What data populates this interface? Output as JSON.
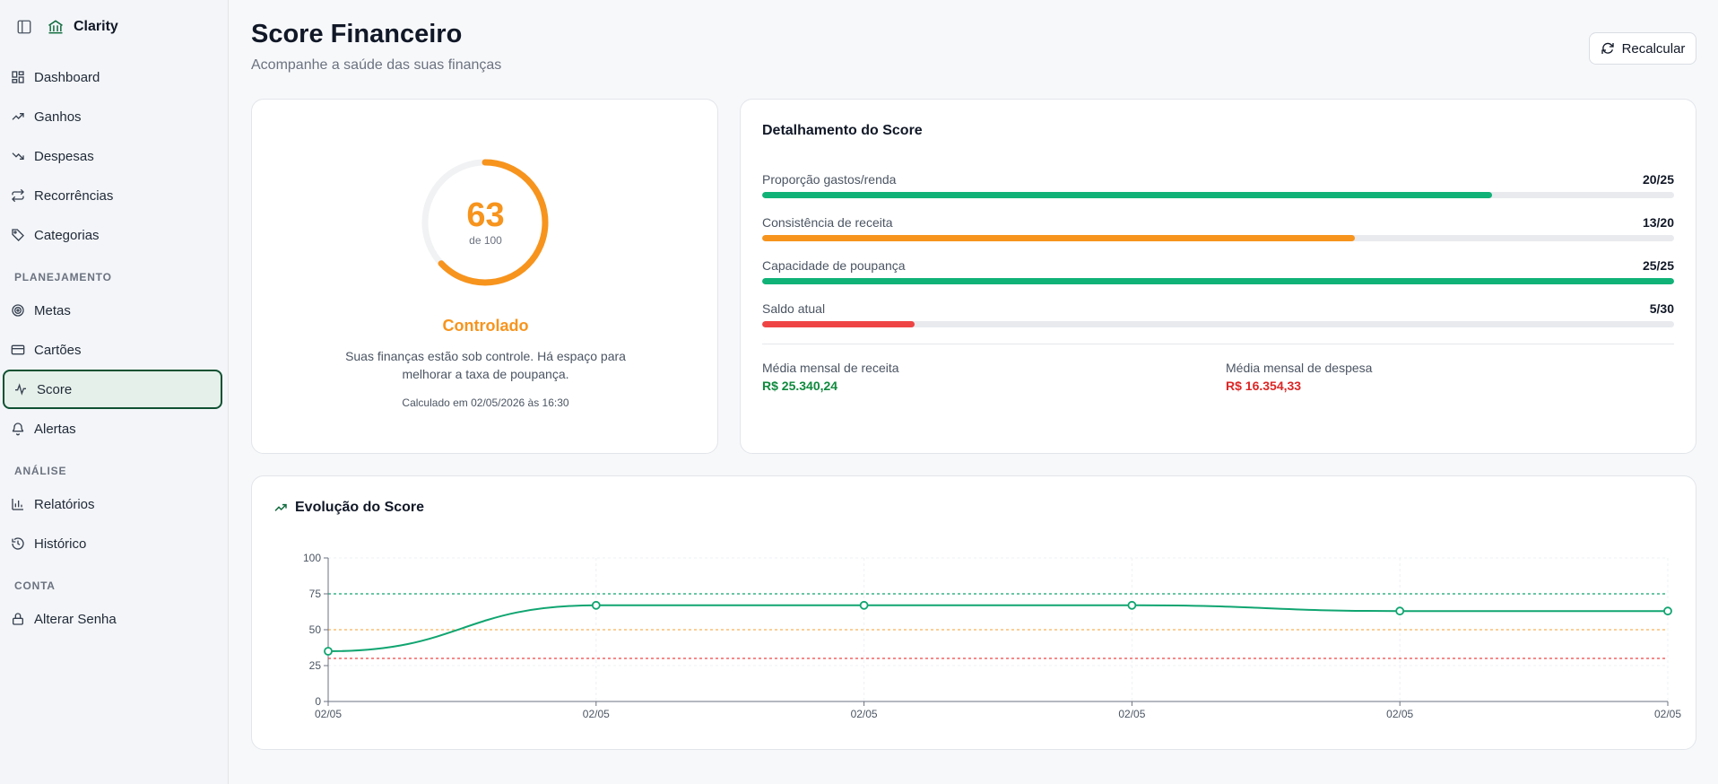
{
  "app": {
    "name": "Clarity"
  },
  "sidebar": {
    "items_main": [
      {
        "label": "Dashboard",
        "icon": "dashboard-icon"
      },
      {
        "label": "Ganhos",
        "icon": "trending-up-icon"
      },
      {
        "label": "Despesas",
        "icon": "trending-down-icon"
      },
      {
        "label": "Recorrências",
        "icon": "repeat-icon"
      },
      {
        "label": "Categorias",
        "icon": "tags-icon"
      }
    ],
    "section_planejamento": "PLANEJAMENTO",
    "items_planejamento": [
      {
        "label": "Metas",
        "icon": "target-icon"
      },
      {
        "label": "Cartões",
        "icon": "credit-card-icon"
      },
      {
        "label": "Score",
        "icon": "activity-icon",
        "active": true
      },
      {
        "label": "Alertas",
        "icon": "bell-icon"
      }
    ],
    "section_analise": "ANÁLISE",
    "items_analise": [
      {
        "label": "Relatórios",
        "icon": "bar-chart-icon"
      },
      {
        "label": "Histórico",
        "icon": "history-icon"
      }
    ],
    "section_conta": "CONTA",
    "items_conta": [
      {
        "label": "Alterar Senha",
        "icon": "lock-icon"
      }
    ]
  },
  "header": {
    "title": "Score Financeiro",
    "subtitle": "Acompanhe a saúde das suas finanças",
    "recalc_label": "Recalcular"
  },
  "score": {
    "value": "63",
    "out_of": "de 100",
    "fraction": 0.63,
    "status": "Controlado",
    "description": "Suas finanças estão sob controle. Há espaço para melhorar a taxa de poupança.",
    "calculated": "Calculado em 02/05/2026 às 16:30",
    "color": "#f7941d"
  },
  "detail": {
    "title": "Detalhamento do Score",
    "bars": [
      {
        "label": "Proporção gastos/renda",
        "value_text": "20/25",
        "fraction": 0.8,
        "color": "#10b277"
      },
      {
        "label": "Consistência de receita",
        "value_text": "13/20",
        "fraction": 0.65,
        "color": "#f7941d"
      },
      {
        "label": "Capacidade de poupança",
        "value_text": "25/25",
        "fraction": 1.0,
        "color": "#10b277"
      },
      {
        "label": "Saldo atual",
        "value_text": "5/30",
        "fraction": 0.1667,
        "color": "#ef4444"
      }
    ],
    "income_label": "Média mensal de receita",
    "income_value": "R$ 25.340,24",
    "income_color": "#0f8a3e",
    "expense_label": "Média mensal de despesa",
    "expense_value": "R$ 16.354,33",
    "expense_color": "#dc2626"
  },
  "evolution": {
    "title": "Evolução do Score"
  },
  "chart_data": {
    "type": "line",
    "x": [
      "02/05",
      "02/05",
      "02/05",
      "02/05",
      "02/05",
      "02/05"
    ],
    "series": [
      {
        "values": [
          35,
          67,
          67,
          67,
          63,
          63
        ],
        "color": "#10a571"
      }
    ],
    "reference_lines": [
      {
        "y": 75,
        "color": "#10a571"
      },
      {
        "y": 50,
        "color": "#f7b25b"
      },
      {
        "y": 30,
        "color": "#ef4444"
      }
    ],
    "yticks": [
      0,
      25,
      50,
      75,
      100
    ],
    "ylim": [
      0,
      100
    ],
    "grid": true
  }
}
